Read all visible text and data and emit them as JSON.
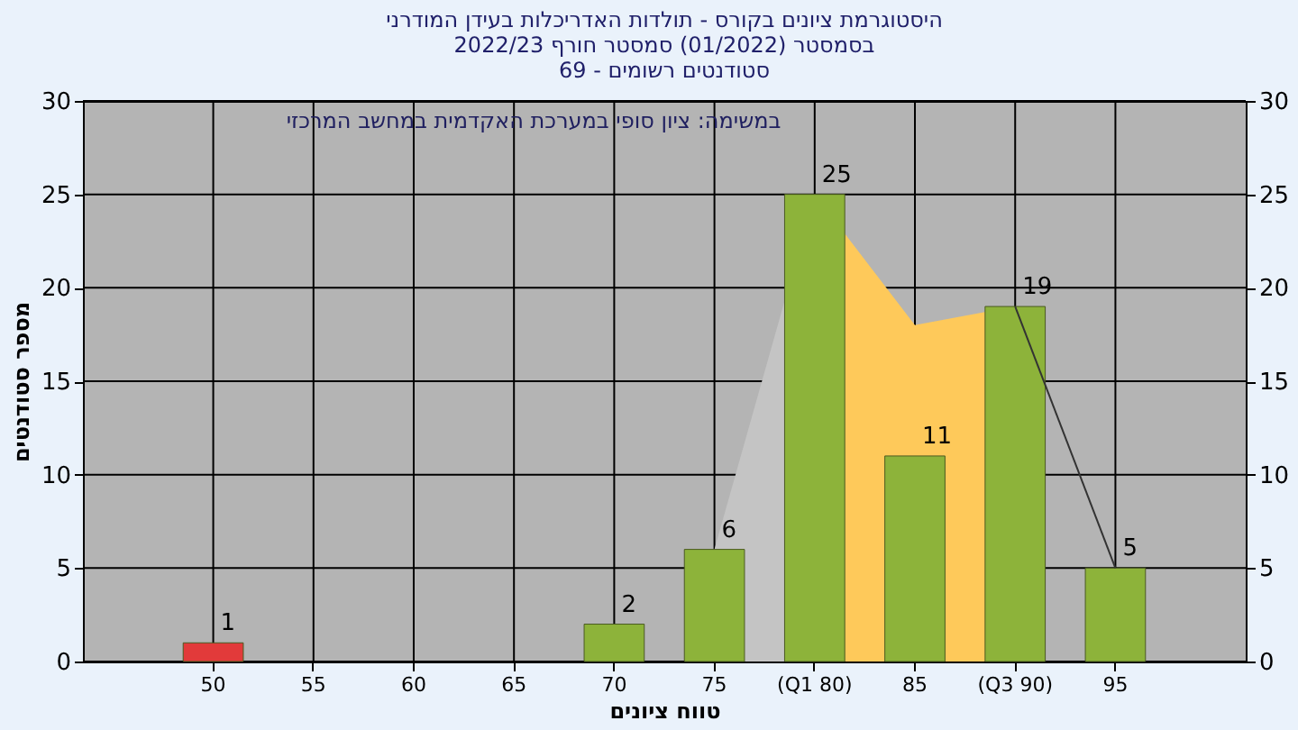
{
  "chart_data": {
    "type": "bar",
    "title": [
      "היסטוגרמת ציונים בקורס - תולדות האדריכלות בעידן המודרני",
      "בסמסטר  (01/2022)  סמסטר חורף 2022/23",
      "סטודנטים רשומים - 69"
    ],
    "xlabel": "טווח ציונים",
    "ylabel": "מספר סטודנטים",
    "annotations": [
      "במשימה: ציון סופי במערכת האקדמית במחשב המרכזי"
    ],
    "categories": [
      "50",
      "55",
      "60",
      "65",
      "70",
      "75",
      "(Q1 80)",
      "85",
      "(Q3 90)",
      "95"
    ],
    "series": [
      {
        "type": "area",
        "color": "#c4c4c4",
        "values": [
          null,
          null,
          null,
          null,
          null,
          6,
          25,
          null,
          null,
          null
        ]
      },
      {
        "type": "area",
        "color": "#fec95a",
        "values": [
          null,
          null,
          null,
          null,
          null,
          null,
          25,
          18,
          19,
          null
        ]
      },
      {
        "type": "line",
        "color": "#333333",
        "values": [
          null,
          null,
          null,
          null,
          null,
          null,
          null,
          null,
          19,
          5
        ]
      },
      {
        "colors": [
          "#e23a3a",
          "#8db33a",
          "#8db33a",
          "#8db33a",
          "#8db33a",
          "#8db33a",
          "#8db33a",
          "#8db33a",
          "#8db33a",
          "#8db33a"
        ],
        "values": [
          1,
          null,
          null,
          null,
          2,
          6,
          25,
          11,
          19,
          5
        ],
        "value_labels": [
          "1",
          null,
          null,
          null,
          "2",
          "6",
          "25",
          "11",
          "19",
          "5"
        ]
      }
    ],
    "ylim": [
      0,
      30
    ],
    "yticks": [
      0,
      5,
      10,
      15,
      20,
      25,
      30
    ],
    "y2lim": [
      0,
      30
    ],
    "y2ticks": [
      0,
      5,
      10,
      15,
      20,
      25,
      30
    ],
    "grid": true
  }
}
